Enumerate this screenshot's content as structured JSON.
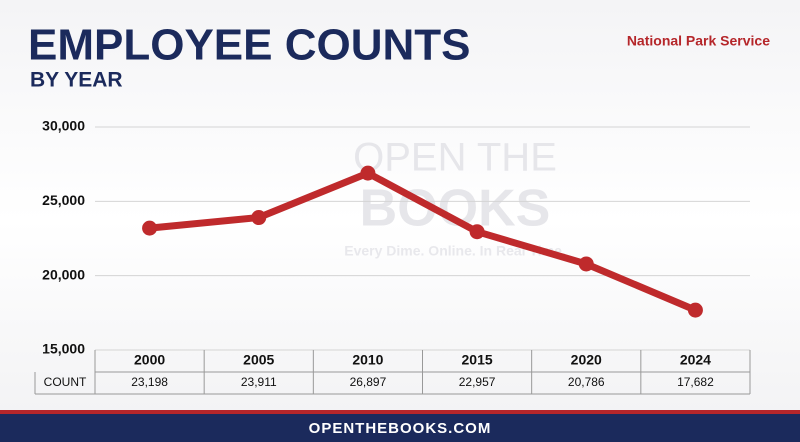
{
  "chart_data": {
    "type": "line",
    "title": "EMPLOYEE COUNTS",
    "subtitle": "BY YEAR",
    "annotation": "National Park Service",
    "categories": [
      "2000",
      "2005",
      "2010",
      "2015",
      "2020",
      "2024"
    ],
    "values": [
      23198,
      23911,
      26897,
      22957,
      20786,
      17682
    ],
    "value_labels": [
      "23,198",
      "23,911",
      "26,897",
      "22,957",
      "20,786",
      "17,682"
    ],
    "table_row_label": "COUNT",
    "color": "#bf2a2c",
    "ylim": [
      15000,
      30000
    ],
    "yticks": [
      {
        "value": 15000,
        "label": "15,000"
      },
      {
        "value": 20000,
        "label": "20,000"
      },
      {
        "value": 25000,
        "label": "25,000"
      },
      {
        "value": 30000,
        "label": "30,000"
      }
    ],
    "grid": true
  },
  "watermark": {
    "lines": [
      "OPEN THE",
      "BOOKS"
    ],
    "tagline": "Every Dime. Online. In Real Time."
  },
  "footer": "OPENTHEBOOKS.COM"
}
